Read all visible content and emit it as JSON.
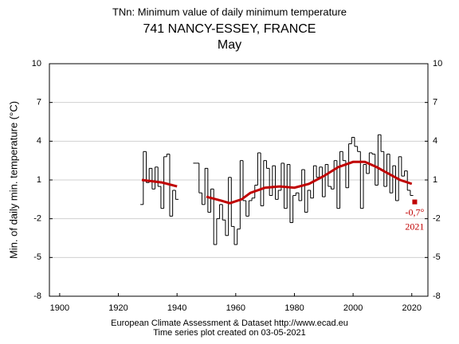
{
  "chart_data": {
    "type": "step",
    "title": "TNn: Minimum value of daily minimum temperature",
    "subtitle": "741 NANCY-ESSEY, FRANCE",
    "period": "May",
    "y_label": "Min. of daily min. temperature (°C)",
    "footer": [
      "European Climate Assessment & Dataset  http://www.ecad.eu",
      "Time series plot created on 03-05-2021"
    ],
    "xlim": [
      1896.5,
      2025.5
    ],
    "xticks": [
      1900,
      1920,
      1940,
      1960,
      1980,
      2000,
      2020
    ],
    "ylim": [
      -8,
      10
    ],
    "yticks": [
      -8,
      -5,
      -2,
      1,
      4,
      7,
      10
    ],
    "grid": true,
    "x": [
      1928,
      1929,
      1930,
      1931,
      1932,
      1933,
      1934,
      1935,
      1936,
      1937,
      1938,
      1939,
      1940,
      1941,
      1942,
      1943,
      1944,
      1945,
      1946,
      1947,
      1948,
      1949,
      1950,
      1951,
      1952,
      1953,
      1954,
      1955,
      1956,
      1957,
      1958,
      1959,
      1960,
      1961,
      1962,
      1963,
      1964,
      1965,
      1966,
      1967,
      1968,
      1969,
      1970,
      1971,
      1972,
      1973,
      1974,
      1975,
      1976,
      1977,
      1978,
      1979,
      1980,
      1981,
      1982,
      1983,
      1984,
      1985,
      1986,
      1987,
      1988,
      1989,
      1990,
      1991,
      1992,
      1993,
      1994,
      1995,
      1996,
      1997,
      1998,
      1999,
      2000,
      2001,
      2002,
      2003,
      2004,
      2005,
      2006,
      2007,
      2008,
      2009,
      2010,
      2011,
      2012,
      2013,
      2014,
      2015,
      2016,
      2017,
      2018,
      2019,
      2020
    ],
    "series": [
      {
        "color": "#000000",
        "values": [
          -0.9,
          3.2,
          0.8,
          1.9,
          0.3,
          2.0,
          0.5,
          -1.2,
          2.8,
          3.0,
          -1.8,
          0.2,
          -0.5,
          null,
          null,
          null,
          null,
          null,
          2.3,
          2.3,
          0.0,
          -0.9,
          1.9,
          -1.5,
          0.3,
          -4.0,
          -2.0,
          -0.9,
          -2.1,
          -3.3,
          1.2,
          -2.6,
          -4.0,
          -2.8,
          2.5,
          -0.6,
          -1.8,
          -0.6,
          -0.4,
          0.6,
          3.1,
          -1.0,
          2.5,
          1.9,
          -0.2,
          2.1,
          -0.5,
          0.2,
          2.3,
          -1.2,
          2.2,
          -2.3,
          -0.2,
          0.0,
          -0.6,
          1.8,
          -1.5,
          0.2,
          -0.4,
          2.1,
          1.2,
          2.0,
          -0.3,
          2.2,
          0.5,
          0.3,
          2.5,
          -1.2,
          3.2,
          2.5,
          0.4,
          3.8,
          4.3,
          3.6,
          3.2,
          -1.2,
          2.2,
          1.5,
          3.1,
          3.0,
          0.6,
          4.5,
          3.2,
          0.5,
          3.0,
          0.0,
          2.1,
          -0.6,
          2.8,
          1.3,
          1.7,
          0.2,
          -0.2
        ]
      },
      {
        "color": "#c00000",
        "x": [
          1928,
          1935,
          1940,
          1946,
          1950,
          1955,
          1958,
          1962,
          1965,
          1970,
          1975,
          1980,
          1985,
          1990,
          1995,
          2000,
          2004,
          2008,
          2012,
          2016,
          2020
        ],
        "values": [
          1.0,
          0.8,
          0.5,
          null,
          -0.3,
          -0.6,
          -0.8,
          -0.5,
          0.0,
          0.4,
          0.5,
          0.4,
          0.7,
          1.3,
          2.0,
          2.4,
          2.4,
          2.0,
          1.5,
          1.0,
          0.7
        ]
      }
    ],
    "highlight": {
      "x": 2021,
      "value": -0.7,
      "value_label": "-0,7°",
      "x_label": "2021",
      "color": "#c00000"
    }
  }
}
